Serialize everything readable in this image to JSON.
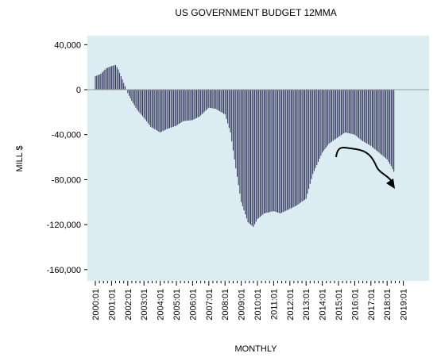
{
  "chart_data": {
    "type": "bar",
    "title": "US GOVERNMENT BUDGET 12MMA",
    "xlabel": "MONTHLY",
    "ylabel": "MILL $",
    "ylim": [
      -170000,
      48000
    ],
    "yticks": [
      40000,
      0,
      -40000,
      -80000,
      -120000,
      -160000
    ],
    "ytick_labels": [
      "40,000",
      "0",
      "-40,000",
      "-80,000",
      "-120,000",
      "-160,000"
    ],
    "xtick_labels": [
      "2000:01",
      "2001:01",
      "2002:01",
      "2003:01",
      "2004:01",
      "2005:01",
      "2006:01",
      "2007:01",
      "2008:01",
      "2009:01",
      "2010:01",
      "2011:01",
      "2012:01",
      "2013:01",
      "2014:01",
      "2015:01",
      "2016:01",
      "2017:01",
      "2018:01",
      "2019:01"
    ],
    "grid": false,
    "colors": {
      "plot_bg": "#dbedf3",
      "bar": "#2b2b52",
      "zero_line": "#999999",
      "annotation": "#000000"
    },
    "series": [
      {
        "anchors": [
          [
            "2000:01",
            12000
          ],
          [
            "2000:05",
            14000
          ],
          [
            "2000:09",
            19000
          ],
          [
            "2001:01",
            21000
          ],
          [
            "2001:04",
            22000
          ],
          [
            "2001:06",
            18000
          ],
          [
            "2001:09",
            9000
          ],
          [
            "2002:01",
            -3000
          ],
          [
            "2002:04",
            -10000
          ],
          [
            "2002:08",
            -18000
          ],
          [
            "2003:01",
            -25000
          ],
          [
            "2003:06",
            -33000
          ],
          [
            "2004:01",
            -38000
          ],
          [
            "2004:06",
            -35000
          ],
          [
            "2005:01",
            -32000
          ],
          [
            "2005:06",
            -28000
          ],
          [
            "2006:01",
            -27000
          ],
          [
            "2006:06",
            -24000
          ],
          [
            "2007:01",
            -16000
          ],
          [
            "2007:06",
            -17000
          ],
          [
            "2008:01",
            -22000
          ],
          [
            "2008:05",
            -38000
          ],
          [
            "2008:09",
            -70000
          ],
          [
            "2009:01",
            -100000
          ],
          [
            "2009:06",
            -118000
          ],
          [
            "2009:10",
            -122000
          ],
          [
            "2010:01",
            -115000
          ],
          [
            "2010:06",
            -110000
          ],
          [
            "2011:01",
            -108000
          ],
          [
            "2011:06",
            -110000
          ],
          [
            "2012:01",
            -106000
          ],
          [
            "2012:06",
            -103000
          ],
          [
            "2013:01",
            -97000
          ],
          [
            "2013:06",
            -75000
          ],
          [
            "2014:01",
            -56000
          ],
          [
            "2014:06",
            -48000
          ],
          [
            "2015:01",
            -42000
          ],
          [
            "2015:06",
            -38000
          ],
          [
            "2016:01",
            -40000
          ],
          [
            "2016:06",
            -45000
          ],
          [
            "2017:01",
            -50000
          ],
          [
            "2017:06",
            -55000
          ],
          [
            "2018:01",
            -62000
          ],
          [
            "2018:04",
            -68000
          ],
          [
            "2018:06",
            -73000
          ]
        ]
      }
    ],
    "annotation": {
      "type": "hand-drawn-arrow",
      "label": ""
    }
  }
}
